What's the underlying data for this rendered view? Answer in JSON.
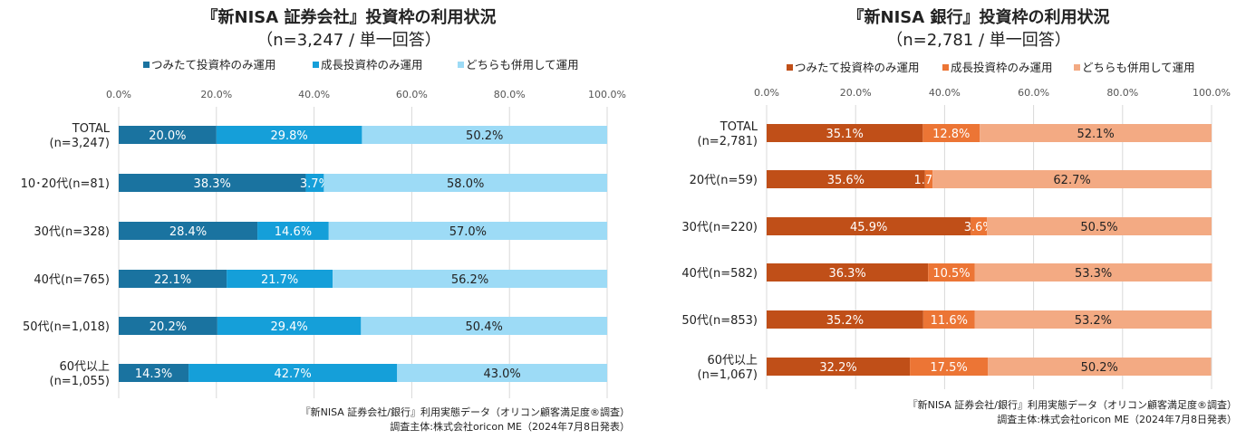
{
  "chart_data": [
    {
      "type": "bar",
      "orientation": "horizontal",
      "stacked": true,
      "title": "『新NISA 証券会社』投資枠の利用状況",
      "subtitle": "（n=3,247 / 単一回答）",
      "xlim": [
        0,
        100
      ],
      "ticks": [
        "0.0%",
        "20.0%",
        "40.0%",
        "60.0%",
        "80.0%",
        "100.0%"
      ],
      "grid": true,
      "legend": "top",
      "categories": [
        [
          "TOTAL",
          "(n=3,247)"
        ],
        [
          "10･20代(n=81)"
        ],
        [
          "30代(n=328)"
        ],
        [
          "40代(n=765)"
        ],
        [
          "50代(n=1,018)"
        ],
        [
          "60代以上",
          "(n=1,055)"
        ]
      ],
      "series": [
        {
          "name": "つみたて投資枠のみ運用",
          "color": "#1a73a0",
          "values": [
            20.0,
            38.3,
            28.4,
            22.1,
            20.2,
            14.3
          ]
        },
        {
          "name": "成長投資枠のみ運用",
          "color": "#159fd9",
          "values": [
            29.8,
            3.7,
            14.6,
            21.7,
            29.4,
            42.7
          ]
        },
        {
          "name": "どちらも併用して運用",
          "color": "#9ddbf6",
          "values": [
            50.2,
            58.0,
            57.0,
            56.2,
            50.4,
            43.0
          ]
        }
      ],
      "note": [
        "『新NISA 証券会社/銀行』利用実態データ（オリコン顧客満足度®調査）",
        "調査主体:株式会社oricon ME（2024年7月8日発表）"
      ]
    },
    {
      "type": "bar",
      "orientation": "horizontal",
      "stacked": true,
      "title": "『新NISA 銀行』投資枠の利用状況",
      "subtitle": "（n=2,781 / 単一回答）",
      "xlim": [
        0,
        100
      ],
      "ticks": [
        "0.0%",
        "20.0%",
        "40.0%",
        "60.0%",
        "80.0%",
        "100.0%"
      ],
      "grid": true,
      "legend": "top",
      "categories": [
        [
          "TOTAL",
          "(n=2,781)"
        ],
        [
          "20代(n=59)"
        ],
        [
          "30代(n=220)"
        ],
        [
          "40代(n=582)"
        ],
        [
          "50代(n=853)"
        ],
        [
          "60代以上",
          "(n=1,067)"
        ]
      ],
      "series": [
        {
          "name": "つみたて投資枠のみ運用",
          "color": "#c04f18",
          "values": [
            35.1,
            35.6,
            45.9,
            36.3,
            35.2,
            32.2
          ]
        },
        {
          "name": "成長投資枠のみ運用",
          "color": "#ec7535",
          "values": [
            12.8,
            1.7,
            3.6,
            10.5,
            11.6,
            17.5
          ]
        },
        {
          "name": "どちらも併用して運用",
          "color": "#f3aa83",
          "values": [
            52.1,
            62.7,
            50.5,
            53.3,
            53.2,
            50.2
          ]
        }
      ],
      "note": [
        "『新NISA 証券会社/銀行』利用実態データ（オリコン顧客満足度®調査）",
        "調査主体:株式会社oricon ME（2024年7月8日発表）"
      ]
    }
  ]
}
